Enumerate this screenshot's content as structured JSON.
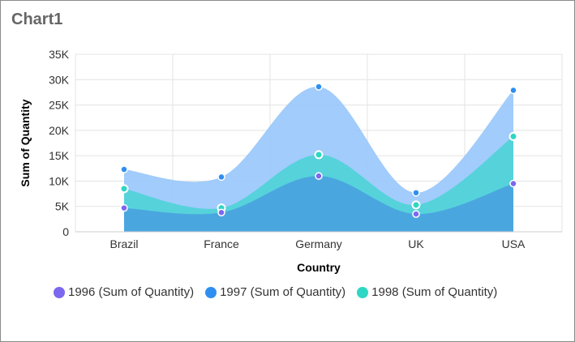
{
  "title": "Chart1",
  "chart_data": {
    "type": "area",
    "categories": [
      "Brazil",
      "France",
      "Germany",
      "UK",
      "USA"
    ],
    "series": [
      {
        "name": "1996 (Sum of Quantity)",
        "values": [
          4700,
          3800,
          11000,
          3500,
          9500
        ],
        "color": "#7b68ee",
        "fill": "#4aa3df"
      },
      {
        "name": "1998 (Sum of Quantity)",
        "values": [
          8500,
          4700,
          15200,
          5300,
          18800
        ],
        "color": "#2ed6c4",
        "fill": "#4fd2d8"
      },
      {
        "name": "1997 (Sum of Quantity)",
        "values": [
          12300,
          10800,
          28600,
          7700,
          27900
        ],
        "color": "#2f8ff0",
        "fill": "#99c8fb"
      }
    ],
    "legend_order": [
      "1996 (Sum of Quantity)",
      "1997 (Sum of Quantity)",
      "1998 (Sum of Quantity)"
    ],
    "xlabel": "Country",
    "ylabel": "Sum of Quantity",
    "yticks": [
      "0",
      "5K",
      "10K",
      "15K",
      "20K",
      "25K",
      "30K",
      "35K"
    ],
    "ylim": [
      0,
      35000
    ]
  }
}
